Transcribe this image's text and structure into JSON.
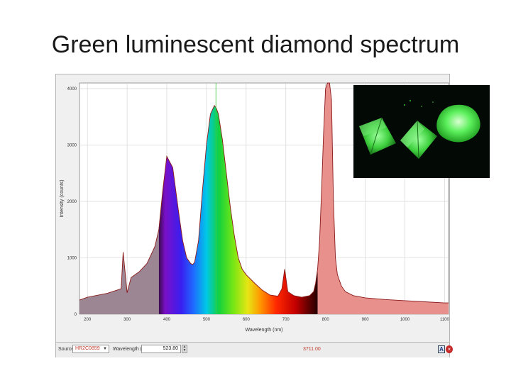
{
  "slide": {
    "title": "Green luminescent diamond spectrum"
  },
  "chart_data": {
    "type": "area",
    "xlabel": "Wavelength (nm)",
    "ylabel": "Intensity (counts)",
    "xlim": [
      180,
      1110
    ],
    "ylim": [
      0,
      4100
    ],
    "x_ticks": [
      "200",
      "300",
      "400",
      "500",
      "600",
      "700",
      "800",
      "900",
      "1000",
      "1100"
    ],
    "y_ticks": [
      "0",
      "1000",
      "2000",
      "3000",
      "4000"
    ],
    "grid": true,
    "x": [
      180,
      200,
      250,
      285,
      290,
      300,
      310,
      330,
      350,
      370,
      380,
      390,
      400,
      415,
      430,
      440,
      450,
      460,
      465,
      470,
      480,
      490,
      500,
      510,
      520,
      525,
      530,
      540,
      550,
      560,
      570,
      580,
      590,
      600,
      620,
      640,
      660,
      680,
      690,
      697,
      705,
      720,
      740,
      760,
      770,
      775,
      780,
      785,
      790,
      795,
      800,
      805,
      810,
      815,
      820,
      825,
      830,
      840,
      850,
      870,
      900,
      950,
      1000,
      1050,
      1100,
      1110
    ],
    "values": [
      250,
      300,
      370,
      450,
      1100,
      380,
      650,
      750,
      900,
      1200,
      1500,
      2200,
      2800,
      2600,
      1800,
      1300,
      1000,
      900,
      880,
      920,
      1300,
      2200,
      3000,
      3550,
      3700,
      3650,
      3550,
      3100,
      2500,
      1900,
      1400,
      1000,
      800,
      700,
      560,
      430,
      340,
      320,
      450,
      800,
      400,
      330,
      300,
      330,
      400,
      550,
      800,
      1300,
      2200,
      3200,
      4000,
      4100,
      4100,
      3800,
      2000,
      1000,
      700,
      500,
      400,
      330,
      290,
      260,
      240,
      220,
      200,
      200
    ],
    "highlight_wavelength": 523.8,
    "visible_band_nm": [
      380,
      780
    ]
  },
  "toolbar": {
    "source_label": "Source:",
    "source_value": "HR2C0859",
    "wavelength_label": "Wavelength (nm):",
    "wavelength_value": "523.80",
    "intensity_readout": "3711.00",
    "a_button": "A"
  },
  "colors": {
    "grid": "#cfcfcf",
    "plot_bg": "#ffffff",
    "uv_fill": "#9c8694",
    "nir_fill": "#e8908c",
    "curve_stroke": "#8b1a1a",
    "cursor": "#3ccc3c"
  },
  "icons": {
    "a": "a-icon",
    "close": "close-icon",
    "caret": "caret-down-icon"
  }
}
